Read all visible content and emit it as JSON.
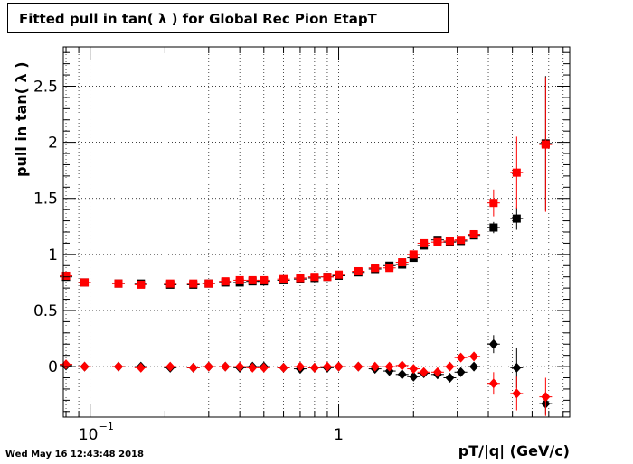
{
  "title": "Fitted pull in tan( λ ) for Global Rec Pion EtapT",
  "timestamp": "Wed May 16 12:43:48 2018",
  "chart_data": {
    "type": "scatter",
    "title": "Fitted pull in tan( λ ) for Global Rec Pion EtapT",
    "xlabel": "pT/|q| (GeV/c)",
    "ylabel": "pull in tan( λ )",
    "xscale": "log",
    "xlim": [
      0.078,
      8.5
    ],
    "ylim": [
      -0.45,
      2.85
    ],
    "grid": true,
    "xticklabels": [
      {
        "value": 0.1,
        "base": "10",
        "exp": "−1"
      },
      {
        "value": 1,
        "base": "1",
        "exp": ""
      }
    ],
    "yticks": [
      0,
      0.5,
      1,
      1.5,
      2,
      2.5
    ],
    "yticklabels": [
      "0",
      "0.5",
      "1",
      "1.5",
      "2",
      "2.5"
    ],
    "series": [
      {
        "color": "#000000",
        "marker": "square",
        "points": [
          {
            "x": 0.08,
            "y": 0.8
          },
          {
            "x": 0.095,
            "y": 0.75
          },
          {
            "x": 0.13,
            "y": 0.74
          },
          {
            "x": 0.16,
            "y": 0.74
          },
          {
            "x": 0.21,
            "y": 0.73
          },
          {
            "x": 0.26,
            "y": 0.73
          },
          {
            "x": 0.3,
            "y": 0.74
          },
          {
            "x": 0.35,
            "y": 0.75
          },
          {
            "x": 0.4,
            "y": 0.75
          },
          {
            "x": 0.45,
            "y": 0.76
          },
          {
            "x": 0.5,
            "y": 0.76
          },
          {
            "x": 0.6,
            "y": 0.77
          },
          {
            "x": 0.7,
            "y": 0.78
          },
          {
            "x": 0.8,
            "y": 0.79
          },
          {
            "x": 0.9,
            "y": 0.8
          },
          {
            "x": 1.0,
            "y": 0.81
          },
          {
            "x": 1.2,
            "y": 0.84
          },
          {
            "x": 1.4,
            "y": 0.87
          },
          {
            "x": 1.6,
            "y": 0.9
          },
          {
            "x": 1.8,
            "y": 0.91
          },
          {
            "x": 2.0,
            "y": 0.97
          },
          {
            "x": 2.2,
            "y": 1.08
          },
          {
            "x": 2.5,
            "y": 1.13
          },
          {
            "x": 2.8,
            "y": 1.11
          },
          {
            "x": 3.1,
            "y": 1.12
          },
          {
            "x": 3.5,
            "y": 1.17
          },
          {
            "x": 4.2,
            "y": 1.24,
            "err": 0.05
          },
          {
            "x": 5.2,
            "y": 1.32,
            "err": 0.1
          },
          {
            "x": 6.8,
            "y": 1.99,
            "err": 0.6
          }
        ]
      },
      {
        "color": "#ff0000",
        "marker": "square",
        "points": [
          {
            "x": 0.08,
            "y": 0.81
          },
          {
            "x": 0.095,
            "y": 0.75
          },
          {
            "x": 0.13,
            "y": 0.74
          },
          {
            "x": 0.16,
            "y": 0.73
          },
          {
            "x": 0.21,
            "y": 0.74
          },
          {
            "x": 0.26,
            "y": 0.74
          },
          {
            "x": 0.3,
            "y": 0.74
          },
          {
            "x": 0.35,
            "y": 0.76
          },
          {
            "x": 0.4,
            "y": 0.77
          },
          {
            "x": 0.45,
            "y": 0.77
          },
          {
            "x": 0.5,
            "y": 0.77
          },
          {
            "x": 0.6,
            "y": 0.78
          },
          {
            "x": 0.7,
            "y": 0.79
          },
          {
            "x": 0.8,
            "y": 0.8
          },
          {
            "x": 0.9,
            "y": 0.8
          },
          {
            "x": 1.0,
            "y": 0.82
          },
          {
            "x": 1.2,
            "y": 0.85
          },
          {
            "x": 1.4,
            "y": 0.88
          },
          {
            "x": 1.6,
            "y": 0.88
          },
          {
            "x": 1.8,
            "y": 0.93
          },
          {
            "x": 2.0,
            "y": 1.0
          },
          {
            "x": 2.2,
            "y": 1.1
          },
          {
            "x": 2.5,
            "y": 1.11
          },
          {
            "x": 2.8,
            "y": 1.12
          },
          {
            "x": 3.1,
            "y": 1.13
          },
          {
            "x": 3.5,
            "y": 1.18
          },
          {
            "x": 4.2,
            "y": 1.46,
            "err": 0.12
          },
          {
            "x": 5.2,
            "y": 1.73,
            "err": 0.32
          },
          {
            "x": 6.8,
            "y": 1.98,
            "err": 0.6
          }
        ]
      },
      {
        "color": "#000000",
        "marker": "diamond",
        "points": [
          {
            "x": 0.08,
            "y": 0.01
          },
          {
            "x": 0.095,
            "y": 0.0
          },
          {
            "x": 0.13,
            "y": 0.0
          },
          {
            "x": 0.16,
            "y": 0.0
          },
          {
            "x": 0.21,
            "y": -0.01
          },
          {
            "x": 0.26,
            "y": -0.01
          },
          {
            "x": 0.3,
            "y": 0.0
          },
          {
            "x": 0.35,
            "y": 0.0
          },
          {
            "x": 0.4,
            "y": -0.01
          },
          {
            "x": 0.45,
            "y": 0.0
          },
          {
            "x": 0.5,
            "y": 0.0
          },
          {
            "x": 0.6,
            "y": -0.01
          },
          {
            "x": 0.7,
            "y": -0.02
          },
          {
            "x": 0.8,
            "y": -0.01
          },
          {
            "x": 0.9,
            "y": -0.01
          },
          {
            "x": 1.0,
            "y": 0.0
          },
          {
            "x": 1.2,
            "y": 0.0
          },
          {
            "x": 1.4,
            "y": -0.02
          },
          {
            "x": 1.6,
            "y": -0.04
          },
          {
            "x": 1.8,
            "y": -0.07
          },
          {
            "x": 2.0,
            "y": -0.09
          },
          {
            "x": 2.2,
            "y": -0.06
          },
          {
            "x": 2.5,
            "y": -0.07
          },
          {
            "x": 2.8,
            "y": -0.1
          },
          {
            "x": 3.1,
            "y": -0.05
          },
          {
            "x": 3.5,
            "y": 0.0
          },
          {
            "x": 4.2,
            "y": 0.2,
            "err": 0.08
          },
          {
            "x": 5.2,
            "y": -0.01,
            "err": 0.18
          },
          {
            "x": 6.8,
            "y": -0.33,
            "err": 0.1
          }
        ]
      },
      {
        "color": "#ff0000",
        "marker": "diamond",
        "points": [
          {
            "x": 0.08,
            "y": 0.02
          },
          {
            "x": 0.095,
            "y": 0.0
          },
          {
            "x": 0.13,
            "y": 0.0
          },
          {
            "x": 0.16,
            "y": -0.01
          },
          {
            "x": 0.21,
            "y": 0.0
          },
          {
            "x": 0.26,
            "y": -0.01
          },
          {
            "x": 0.3,
            "y": 0.0
          },
          {
            "x": 0.35,
            "y": 0.0
          },
          {
            "x": 0.4,
            "y": 0.0
          },
          {
            "x": 0.45,
            "y": -0.01
          },
          {
            "x": 0.5,
            "y": -0.01
          },
          {
            "x": 0.6,
            "y": -0.01
          },
          {
            "x": 0.7,
            "y": 0.0
          },
          {
            "x": 0.8,
            "y": -0.01
          },
          {
            "x": 0.9,
            "y": 0.0
          },
          {
            "x": 1.0,
            "y": 0.0
          },
          {
            "x": 1.2,
            "y": 0.0
          },
          {
            "x": 1.4,
            "y": 0.0
          },
          {
            "x": 1.6,
            "y": 0.0
          },
          {
            "x": 1.8,
            "y": 0.01
          },
          {
            "x": 2.0,
            "y": -0.02
          },
          {
            "x": 2.2,
            "y": -0.05
          },
          {
            "x": 2.5,
            "y": -0.05
          },
          {
            "x": 2.8,
            "y": 0.0
          },
          {
            "x": 3.1,
            "y": 0.08
          },
          {
            "x": 3.5,
            "y": 0.09
          },
          {
            "x": 4.2,
            "y": -0.15,
            "err": 0.1
          },
          {
            "x": 5.2,
            "y": -0.24,
            "err": 0.15
          },
          {
            "x": 6.8,
            "y": -0.27,
            "err": 0.17
          }
        ]
      }
    ]
  }
}
